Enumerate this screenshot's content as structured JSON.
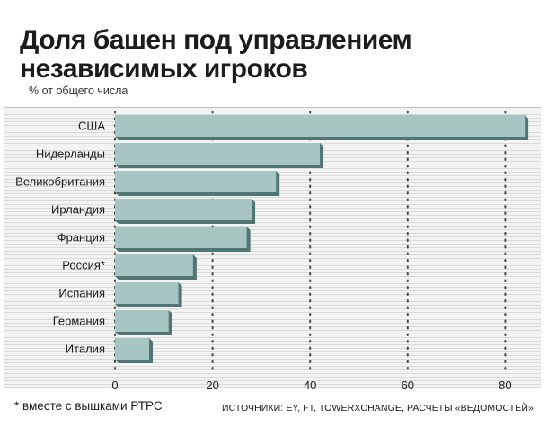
{
  "title_line1": "Доля башен под управлением",
  "title_line2": "независимых игроков",
  "subtitle": "% от общего числа",
  "footnote": "* вместе с вышками РТРС",
  "sources": "ИСТОЧНИКИ: EY, FT, TOWERXCHANGE, РАСЧЕТЫ «ВЕДОМОСТЕЙ»",
  "colors": {
    "bar_face": "#a7c6c3",
    "bar_shadow": "#4f7672",
    "grid": "#444444"
  },
  "chart_data": {
    "type": "bar",
    "orientation": "horizontal",
    "title": "Доля башен под управлением независимых игроков",
    "subtitle": "% от общего числа",
    "categories": [
      "США",
      "Нидерланды",
      "Великобритания",
      "Ирландия",
      "Франция",
      "Россия*",
      "Испания",
      "Германия",
      "Италия"
    ],
    "values": [
      84,
      42,
      33,
      28,
      27,
      16,
      13,
      11,
      7
    ],
    "xticks": [
      "0",
      "20",
      "40",
      "60",
      "80"
    ],
    "xlim": [
      0,
      86
    ],
    "grid": true,
    "legend": "none"
  }
}
